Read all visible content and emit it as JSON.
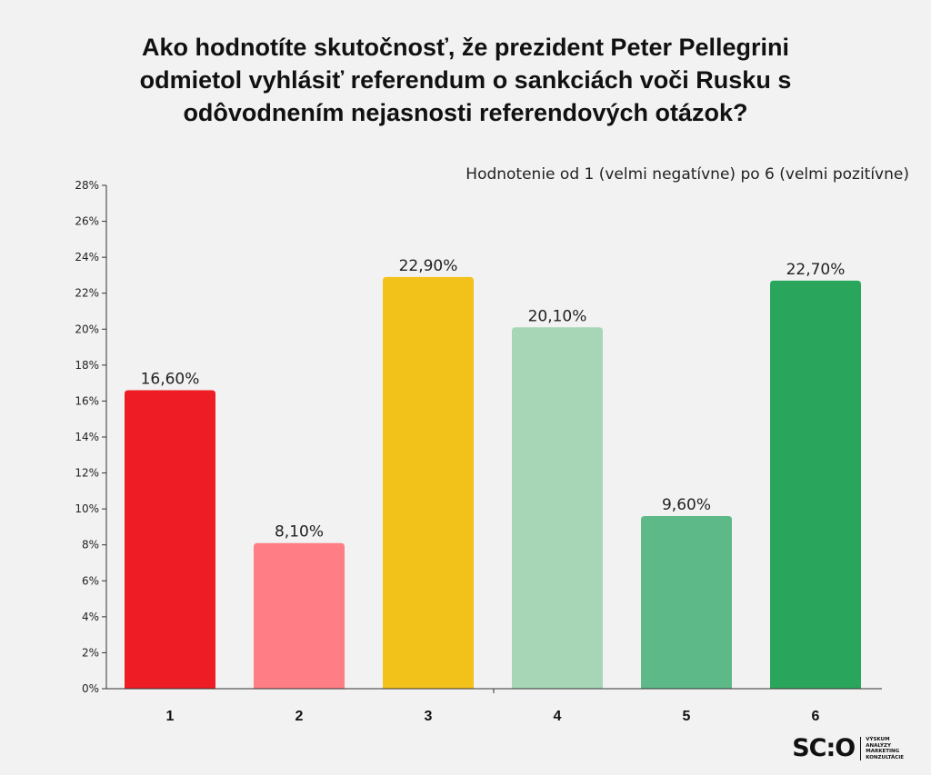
{
  "title_lines": [
    "Ako hodnotíte skutočnosť, že prezident Peter Pellegrini",
    "odmietol vyhlásiť referendum o sankciách voči Rusku s",
    "odôvodnením nejasnosti referendových otázok?"
  ],
  "logo": {
    "mark": "SC:O",
    "tagline": [
      "VÝSKUM",
      "ANALÝZY",
      "MARKETING",
      "KONZULTÁCIE"
    ]
  },
  "chart_data": {
    "type": "bar",
    "title": "Ako hodnotíte skutočnosť, že prezident Peter Pellegrini odmietol vyhlásiť referendum o sankciách voči Rusku s odôvodnením nejasnosti referendových otázok?",
    "subtitle": "Hodnotenie  od 1 (velmi negatívne) po 6 (velmi pozitívne)",
    "categories": [
      "1",
      "2",
      "3",
      "4",
      "5",
      "6"
    ],
    "values": [
      16.6,
      8.1,
      22.9,
      20.1,
      9.6,
      22.7
    ],
    "data_labels": [
      "16,60%",
      "8,10%",
      "22,90%",
      "20,10%",
      "9,60%",
      "22,70%"
    ],
    "colors": [
      "#ee1c25",
      "#ff7d85",
      "#f2c11a",
      "#a7d6b6",
      "#5db987",
      "#29a65c"
    ],
    "ylim": [
      0,
      28
    ],
    "yticks": [
      "0%",
      "2%",
      "4%",
      "6%",
      "8%",
      "10%",
      "12%",
      "14%",
      "16%",
      "18%",
      "20%",
      "22%",
      "24%",
      "26%",
      "28%"
    ],
    "xlabel": "",
    "ylabel": "",
    "grid": false,
    "legend": "none"
  }
}
